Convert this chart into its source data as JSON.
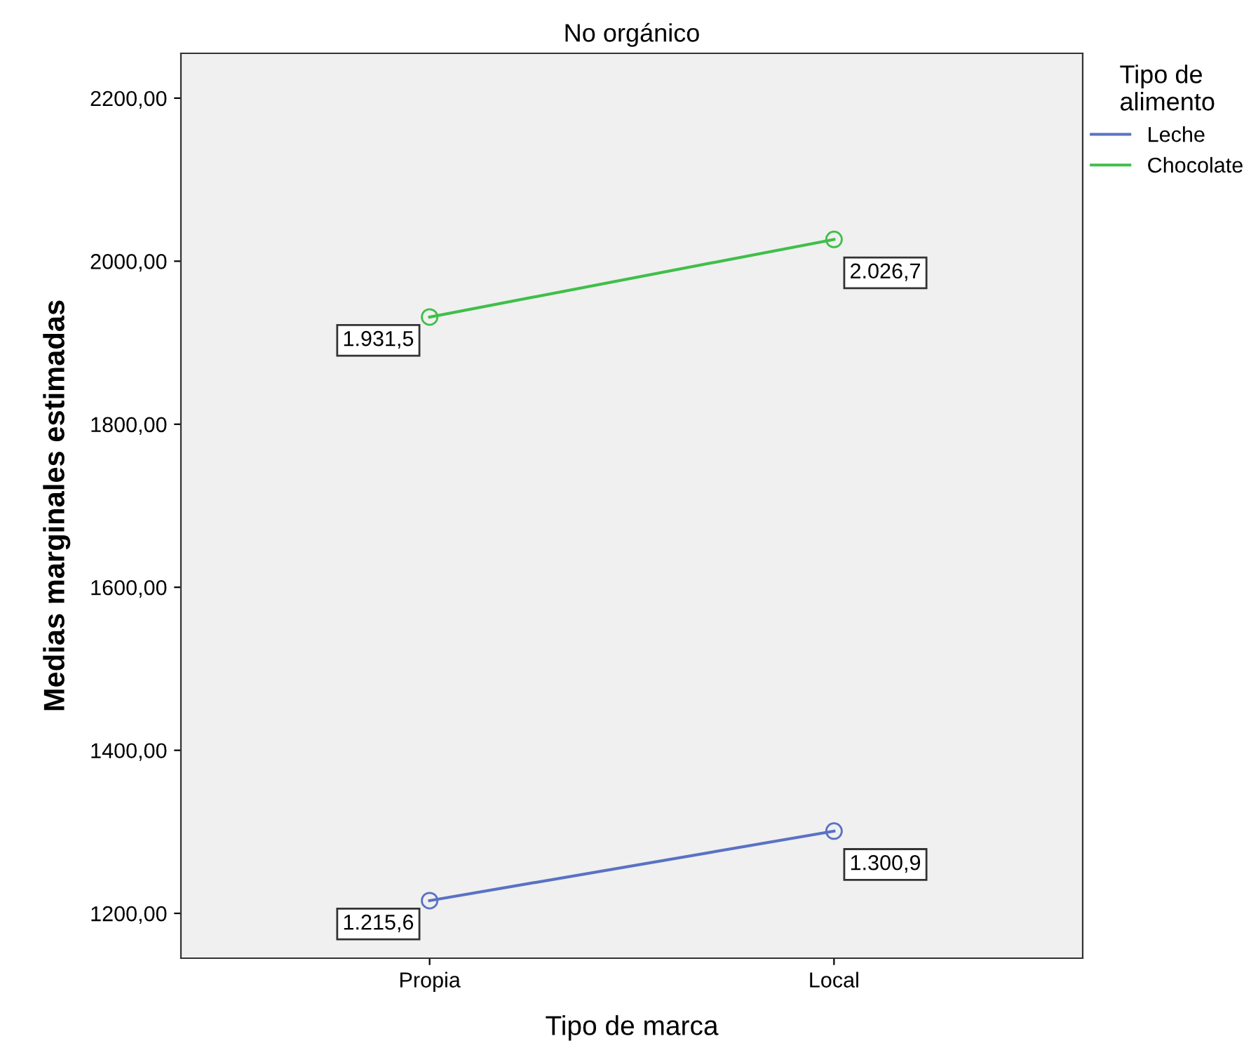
{
  "chart_data": {
    "type": "line",
    "title": "No orgánico",
    "xlabel": "Tipo de marca",
    "ylabel": "Medias marginales estimadas",
    "legend_title": "Tipo de\nalimento",
    "categories": [
      "Propia",
      "Local"
    ],
    "series": [
      {
        "name": "Leche",
        "color": "#5a72c4",
        "values": [
          1215.6,
          1300.9
        ],
        "value_labels": [
          "1.215,6",
          "1.300,9"
        ]
      },
      {
        "name": "Chocolate",
        "color": "#3fbf4a",
        "values": [
          1931.5,
          2026.7
        ],
        "value_labels": [
          "1.931,5",
          "2.026,7"
        ]
      }
    ],
    "ylim": [
      1145,
      2255
    ],
    "yticks": [
      {
        "value": 1200,
        "label": "1200,00"
      },
      {
        "value": 1400,
        "label": "1400,00"
      },
      {
        "value": 1600,
        "label": "1600,00"
      },
      {
        "value": 1800,
        "label": "1800,00"
      },
      {
        "value": 2000,
        "label": "2000,00"
      },
      {
        "value": 2200,
        "label": "2200,00"
      }
    ],
    "marker": "circle",
    "line_style": "solid",
    "grid": false,
    "legend": "top right"
  }
}
